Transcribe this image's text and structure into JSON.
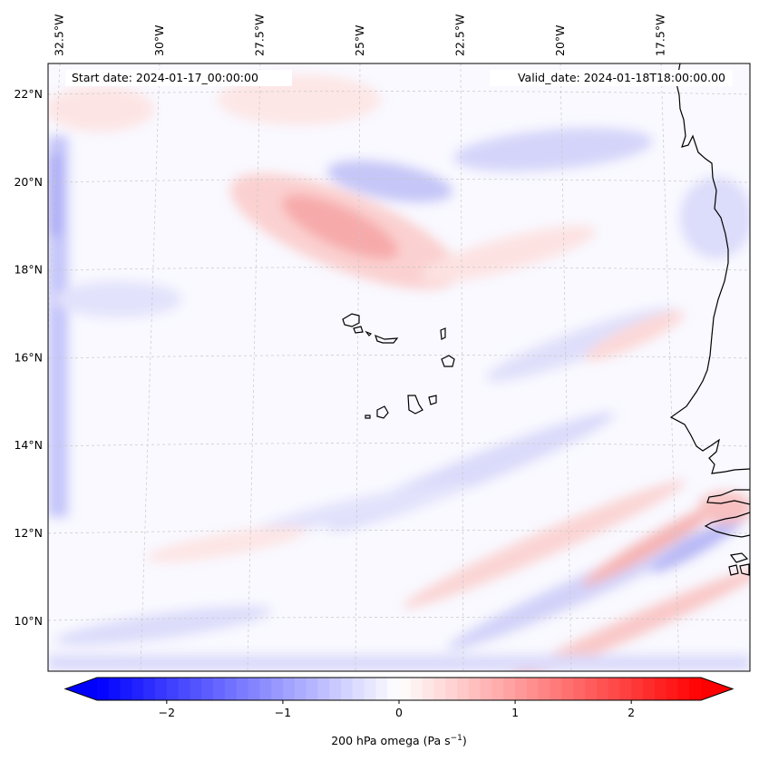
{
  "figure": {
    "start_label": "Start date: 2024-01-17_00:00:00",
    "valid_label": "Valid_date: 2024-01-18T18:00:00.00"
  },
  "map": {
    "projection": "lambert-conformal",
    "lon_range": [
      -33,
      -15.5
    ],
    "lat_range": [
      8.8,
      22.8
    ],
    "lon_ticks": [
      {
        "value": -32.5,
        "label": "32.5°W"
      },
      {
        "value": -30,
        "label": "30°W"
      },
      {
        "value": -27.5,
        "label": "27.5°W"
      },
      {
        "value": -25,
        "label": "25°W"
      },
      {
        "value": -22.5,
        "label": "22.5°W"
      },
      {
        "value": -20,
        "label": "20°W"
      },
      {
        "value": -17.5,
        "label": "17.5°W"
      }
    ],
    "lat_ticks": [
      {
        "value": 22,
        "label": "22°N"
      },
      {
        "value": 20,
        "label": "20°N"
      },
      {
        "value": 18,
        "label": "18°N"
      },
      {
        "value": 16,
        "label": "16°N"
      },
      {
        "value": 14,
        "label": "14°N"
      },
      {
        "value": 12,
        "label": "12°N"
      },
      {
        "value": 10,
        "label": "10°N"
      }
    ],
    "gridlines": true,
    "coastline": true,
    "features": [
      {
        "name": "Cape Verde Islands",
        "region": "center"
      },
      {
        "name": "West African coast (Mauritania, Senegal, Gambia, Guinea-Bissau)",
        "region": "right edge"
      }
    ],
    "field": {
      "variable": "200 hPa omega",
      "units": "Pa s-1",
      "pattern": "weak mostly-near-zero field; positive band near 19°N 26°W, negative patch near 20°N 24°W, alternating diagonal streaks in the southeast, negative strip along western edge"
    }
  },
  "colorbar": {
    "cmap": "bwr",
    "vmin": -2.6,
    "vmax": 2.6,
    "extend": "both",
    "orientation": "horizontal",
    "ticks": [
      {
        "value": -2,
        "label": "−2"
      },
      {
        "value": -1,
        "label": "−1"
      },
      {
        "value": 0,
        "label": "0"
      },
      {
        "value": 1,
        "label": "1"
      },
      {
        "value": 2,
        "label": "2"
      }
    ],
    "label_main": "200 hPa omega (Pa s",
    "label_sup": "−1",
    "label_end": ")"
  },
  "colors": {
    "neg": "#0000ff",
    "pos": "#ff0000",
    "zero": "#ffffff",
    "coast": "#000000",
    "grid": "#c8c8c8"
  }
}
